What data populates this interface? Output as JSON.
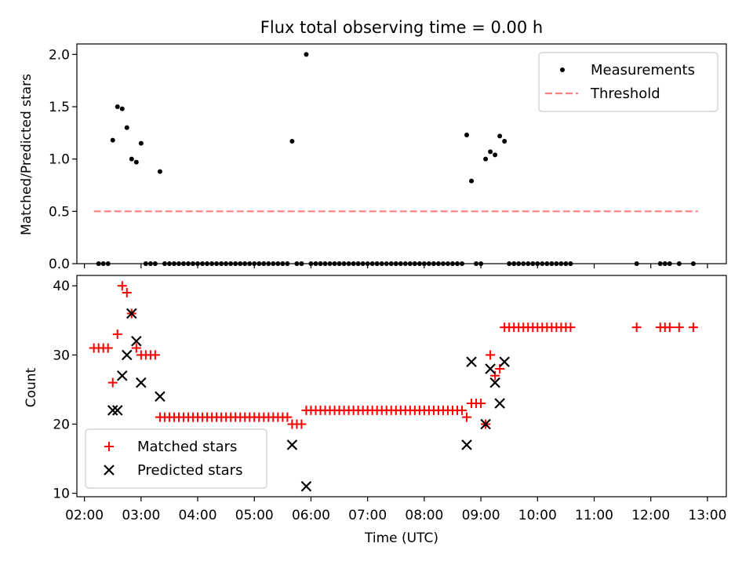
{
  "chart_data": [
    {
      "type": "scatter",
      "title": "Flux total observing time = 0.00 h",
      "xlabel": "",
      "ylabel": "Matched/Predicted stars",
      "xlim": [
        "01:52",
        "13:20"
      ],
      "ylim": [
        0,
        2.1
      ],
      "yticks": [
        0.0,
        0.5,
        1.0,
        1.5,
        2.0
      ],
      "ytick_labels": [
        "0.0",
        "0.5",
        "1.0",
        "1.5",
        "2.0"
      ],
      "legend_position": "top-right",
      "legend": [
        {
          "label": "Measurements",
          "marker": "dot",
          "color": "#000000"
        },
        {
          "label": "Threshold",
          "marker": "dashed-line",
          "color": "#ff7f7f"
        }
      ],
      "series": [
        {
          "name": "Measurements",
          "marker": "dot",
          "color": "#000000",
          "points": [
            [
              "02:15",
              0
            ],
            [
              "02:20",
              0
            ],
            [
              "02:25",
              0
            ],
            [
              "02:30",
              1.18
            ],
            [
              "02:35",
              1.5
            ],
            [
              "02:40",
              1.48
            ],
            [
              "02:45",
              1.3
            ],
            [
              "02:50",
              1.0
            ],
            [
              "02:55",
              0.97
            ],
            [
              "03:00",
              1.15
            ],
            [
              "03:05",
              0
            ],
            [
              "03:10",
              0
            ],
            [
              "03:15",
              0
            ],
            [
              "03:20",
              0.88
            ],
            [
              "03:25",
              0
            ],
            [
              "03:30",
              0
            ],
            [
              "03:35",
              0
            ],
            [
              "03:40",
              0
            ],
            [
              "03:45",
              0
            ],
            [
              "03:50",
              0
            ],
            [
              "03:55",
              0
            ],
            [
              "04:00",
              0
            ],
            [
              "04:05",
              0
            ],
            [
              "04:10",
              0
            ],
            [
              "04:15",
              0
            ],
            [
              "04:20",
              0
            ],
            [
              "04:25",
              0
            ],
            [
              "04:30",
              0
            ],
            [
              "04:35",
              0
            ],
            [
              "04:40",
              0
            ],
            [
              "04:45",
              0
            ],
            [
              "04:50",
              0
            ],
            [
              "04:55",
              0
            ],
            [
              "05:00",
              0
            ],
            [
              "05:05",
              0
            ],
            [
              "05:10",
              0
            ],
            [
              "05:15",
              0
            ],
            [
              "05:20",
              0
            ],
            [
              "05:25",
              0
            ],
            [
              "05:30",
              0
            ],
            [
              "05:35",
              0
            ],
            [
              "05:40",
              1.17
            ],
            [
              "05:45",
              0
            ],
            [
              "05:50",
              0
            ],
            [
              "05:55",
              2.0
            ],
            [
              "06:00",
              0
            ],
            [
              "06:05",
              0
            ],
            [
              "06:10",
              0
            ],
            [
              "06:15",
              0
            ],
            [
              "06:20",
              0
            ],
            [
              "06:25",
              0
            ],
            [
              "06:30",
              0
            ],
            [
              "06:35",
              0
            ],
            [
              "06:40",
              0
            ],
            [
              "06:45",
              0
            ],
            [
              "06:50",
              0
            ],
            [
              "06:55",
              0
            ],
            [
              "07:00",
              0
            ],
            [
              "07:05",
              0
            ],
            [
              "07:10",
              0
            ],
            [
              "07:15",
              0
            ],
            [
              "07:20",
              0
            ],
            [
              "07:25",
              0
            ],
            [
              "07:30",
              0
            ],
            [
              "07:35",
              0
            ],
            [
              "07:40",
              0
            ],
            [
              "07:45",
              0
            ],
            [
              "07:50",
              0
            ],
            [
              "07:55",
              0
            ],
            [
              "08:00",
              0
            ],
            [
              "08:05",
              0
            ],
            [
              "08:10",
              0
            ],
            [
              "08:15",
              0
            ],
            [
              "08:20",
              0
            ],
            [
              "08:25",
              0
            ],
            [
              "08:30",
              0
            ],
            [
              "08:35",
              0
            ],
            [
              "08:40",
              0
            ],
            [
              "08:45",
              1.23
            ],
            [
              "08:50",
              0.79
            ],
            [
              "08:55",
              0
            ],
            [
              "09:00",
              0
            ],
            [
              "09:05",
              1.0
            ],
            [
              "09:10",
              1.07
            ],
            [
              "09:15",
              1.04
            ],
            [
              "09:20",
              1.22
            ],
            [
              "09:25",
              1.17
            ],
            [
              "09:30",
              0
            ],
            [
              "09:35",
              0
            ],
            [
              "09:40",
              0
            ],
            [
              "09:45",
              0
            ],
            [
              "09:50",
              0
            ],
            [
              "09:55",
              0
            ],
            [
              "10:00",
              0
            ],
            [
              "10:05",
              0
            ],
            [
              "10:10",
              0
            ],
            [
              "10:15",
              0
            ],
            [
              "10:20",
              0
            ],
            [
              "10:25",
              0
            ],
            [
              "10:30",
              0
            ],
            [
              "10:35",
              0
            ],
            [
              "11:45",
              0
            ],
            [
              "12:10",
              0
            ],
            [
              "12:15",
              0
            ],
            [
              "12:20",
              0
            ],
            [
              "12:30",
              0
            ],
            [
              "12:45",
              0
            ]
          ]
        },
        {
          "name": "Threshold",
          "marker": "dashed-line",
          "color": "#ff7f7f",
          "points": [
            [
              "02:10",
              0.5
            ],
            [
              "12:50",
              0.5
            ]
          ]
        }
      ]
    },
    {
      "type": "scatter",
      "title": "",
      "xlabel": "Time (UTC)",
      "ylabel": "Count",
      "xlim": [
        "01:52",
        "13:20"
      ],
      "ylim": [
        9.5,
        41.5
      ],
      "yticks": [
        10,
        20,
        30,
        40
      ],
      "ytick_labels": [
        "10",
        "20",
        "30",
        "40"
      ],
      "xticks": [
        "02:00",
        "03:00",
        "04:00",
        "05:00",
        "06:00",
        "07:00",
        "08:00",
        "09:00",
        "10:00",
        "11:00",
        "12:00",
        "13:00"
      ],
      "legend_position": "bottom-left",
      "legend": [
        {
          "label": "Matched stars",
          "marker": "plus",
          "color": "#ff0000"
        },
        {
          "label": "Predicted stars",
          "marker": "x",
          "color": "#000000"
        }
      ],
      "series": [
        {
          "name": "Matched stars",
          "marker": "plus",
          "color": "#ff0000",
          "points": [
            [
              "02:10",
              31
            ],
            [
              "02:15",
              31
            ],
            [
              "02:20",
              31
            ],
            [
              "02:25",
              31
            ],
            [
              "02:30",
              26
            ],
            [
              "02:35",
              33
            ],
            [
              "02:40",
              40
            ],
            [
              "02:45",
              39
            ],
            [
              "02:50",
              36
            ],
            [
              "02:55",
              31
            ],
            [
              "03:00",
              30
            ],
            [
              "03:05",
              30
            ],
            [
              "03:10",
              30
            ],
            [
              "03:15",
              30
            ],
            [
              "03:20",
              21
            ],
            [
              "03:25",
              21
            ],
            [
              "03:30",
              21
            ],
            [
              "03:35",
              21
            ],
            [
              "03:40",
              21
            ],
            [
              "03:45",
              21
            ],
            [
              "03:50",
              21
            ],
            [
              "03:55",
              21
            ],
            [
              "04:00",
              21
            ],
            [
              "04:05",
              21
            ],
            [
              "04:10",
              21
            ],
            [
              "04:15",
              21
            ],
            [
              "04:20",
              21
            ],
            [
              "04:25",
              21
            ],
            [
              "04:30",
              21
            ],
            [
              "04:35",
              21
            ],
            [
              "04:40",
              21
            ],
            [
              "04:45",
              21
            ],
            [
              "04:50",
              21
            ],
            [
              "04:55",
              21
            ],
            [
              "05:00",
              21
            ],
            [
              "05:05",
              21
            ],
            [
              "05:10",
              21
            ],
            [
              "05:15",
              21
            ],
            [
              "05:20",
              21
            ],
            [
              "05:25",
              21
            ],
            [
              "05:30",
              21
            ],
            [
              "05:35",
              21
            ],
            [
              "05:40",
              20
            ],
            [
              "05:45",
              20
            ],
            [
              "05:50",
              20
            ],
            [
              "05:55",
              22
            ],
            [
              "06:00",
              22
            ],
            [
              "06:05",
              22
            ],
            [
              "06:10",
              22
            ],
            [
              "06:15",
              22
            ],
            [
              "06:20",
              22
            ],
            [
              "06:25",
              22
            ],
            [
              "06:30",
              22
            ],
            [
              "06:35",
              22
            ],
            [
              "06:40",
              22
            ],
            [
              "06:45",
              22
            ],
            [
              "06:50",
              22
            ],
            [
              "06:55",
              22
            ],
            [
              "07:00",
              22
            ],
            [
              "07:05",
              22
            ],
            [
              "07:10",
              22
            ],
            [
              "07:15",
              22
            ],
            [
              "07:20",
              22
            ],
            [
              "07:25",
              22
            ],
            [
              "07:30",
              22
            ],
            [
              "07:35",
              22
            ],
            [
              "07:40",
              22
            ],
            [
              "07:45",
              22
            ],
            [
              "07:50",
              22
            ],
            [
              "07:55",
              22
            ],
            [
              "08:00",
              22
            ],
            [
              "08:05",
              22
            ],
            [
              "08:10",
              22
            ],
            [
              "08:15",
              22
            ],
            [
              "08:20",
              22
            ],
            [
              "08:25",
              22
            ],
            [
              "08:30",
              22
            ],
            [
              "08:35",
              22
            ],
            [
              "08:40",
              22
            ],
            [
              "08:45",
              21
            ],
            [
              "08:50",
              23
            ],
            [
              "08:55",
              23
            ],
            [
              "09:00",
              23
            ],
            [
              "09:05",
              20
            ],
            [
              "09:10",
              30
            ],
            [
              "09:15",
              27
            ],
            [
              "09:20",
              28
            ],
            [
              "09:25",
              34
            ],
            [
              "09:30",
              34
            ],
            [
              "09:35",
              34
            ],
            [
              "09:40",
              34
            ],
            [
              "09:45",
              34
            ],
            [
              "09:50",
              34
            ],
            [
              "09:55",
              34
            ],
            [
              "10:00",
              34
            ],
            [
              "10:05",
              34
            ],
            [
              "10:10",
              34
            ],
            [
              "10:15",
              34
            ],
            [
              "10:20",
              34
            ],
            [
              "10:25",
              34
            ],
            [
              "10:30",
              34
            ],
            [
              "10:35",
              34
            ],
            [
              "11:45",
              34
            ],
            [
              "12:10",
              34
            ],
            [
              "12:15",
              34
            ],
            [
              "12:20",
              34
            ],
            [
              "12:30",
              34
            ],
            [
              "12:45",
              34
            ]
          ]
        },
        {
          "name": "Predicted stars",
          "marker": "x",
          "color": "#000000",
          "points": [
            [
              "02:30",
              22
            ],
            [
              "02:35",
              22
            ],
            [
              "02:40",
              27
            ],
            [
              "02:45",
              30
            ],
            [
              "02:50",
              36
            ],
            [
              "02:55",
              32
            ],
            [
              "03:00",
              26
            ],
            [
              "03:20",
              24
            ],
            [
              "05:40",
              17
            ],
            [
              "05:55",
              11
            ],
            [
              "08:45",
              17
            ],
            [
              "08:50",
              29
            ],
            [
              "09:05",
              20
            ],
            [
              "09:10",
              28
            ],
            [
              "09:15",
              26
            ],
            [
              "09:20",
              23
            ],
            [
              "09:25",
              29
            ]
          ]
        }
      ]
    }
  ]
}
